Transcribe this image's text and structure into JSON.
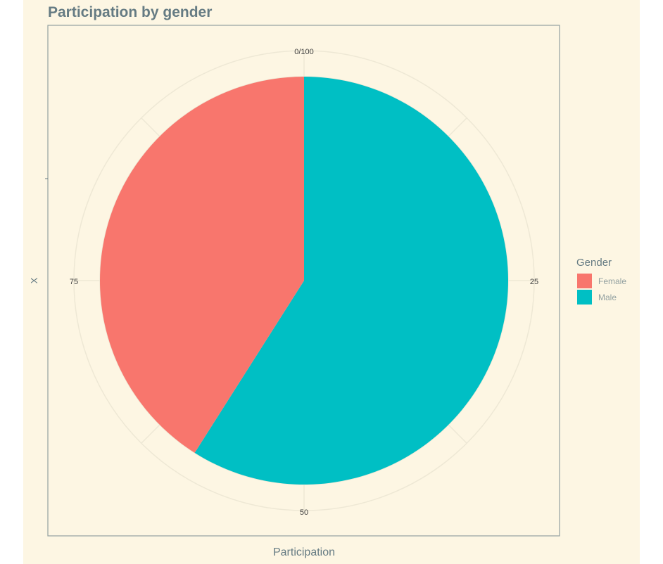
{
  "chart_data": {
    "type": "pie",
    "title": "Participation by gender",
    "xlabel": "Participation",
    "ylabel": "X",
    "theta_ticks": [
      {
        "value": 0,
        "label": "0/100"
      },
      {
        "value": 25,
        "label": "25"
      },
      {
        "value": 50,
        "label": "50"
      },
      {
        "value": 75,
        "label": "75"
      }
    ],
    "legend": {
      "title": "Gender",
      "position": "right"
    },
    "slices": [
      {
        "label": "Female",
        "value": 41,
        "color": "#f8766d"
      },
      {
        "label": "Male",
        "value": 59,
        "color": "#00bfc4"
      }
    ],
    "total": 100,
    "grid": true,
    "colors": {
      "background": "#fdf6e3",
      "panel_border": "#93a1a1",
      "grid": "#eee8d5",
      "text": "#657b83"
    }
  }
}
